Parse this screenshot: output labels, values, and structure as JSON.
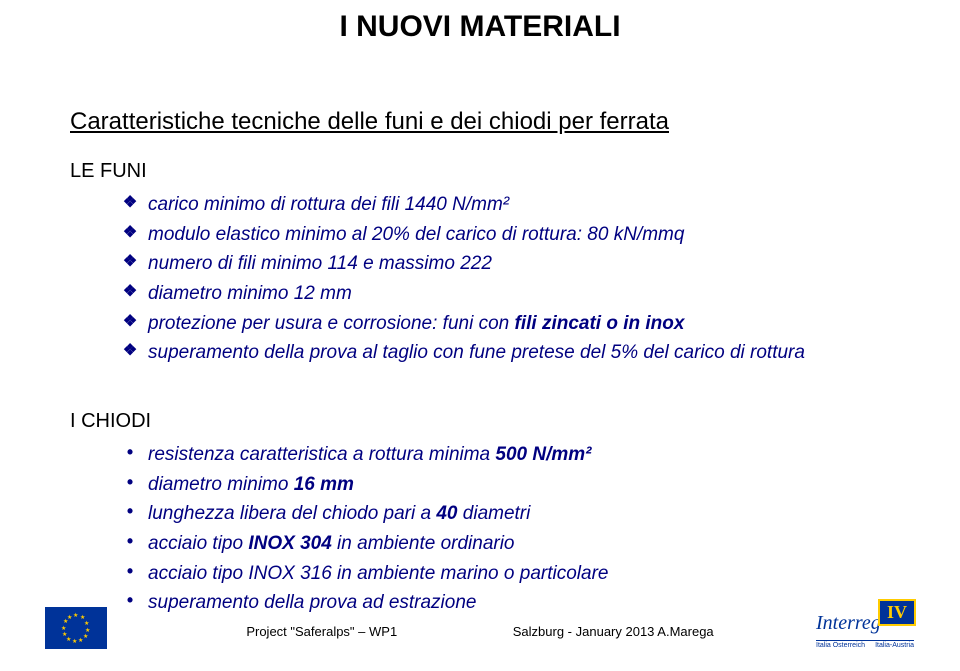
{
  "title": "I NUOVI MATERIALI",
  "subtitle": "Caratteristiche tecniche delle funi e dei chiodi per ferrata",
  "sections": {
    "lefuni": {
      "label": "LE FUNI",
      "items": [
        "carico minimo di rottura dei fili 1440 N/mm²",
        "modulo elastico minimo al 20% del carico di rottura: 80 kN/mmq",
        "numero di fili minimo 114 e massimo 222",
        "diametro minimo 12 mm",
        "protezione per usura e corrosione: funi con <b>fili zincati o in inox</b>",
        "superamento della prova al taglio con fune pretese del 5% del carico di rottura"
      ]
    },
    "ichiodi": {
      "label": "I CHIODI",
      "items": [
        "resistenza caratteristica a rottura minima <b>500 N/mm²</b>",
        "diametro minimo <b>16 mm</b>",
        "lunghezza libera del chiodo pari a <b>40</b> diametri",
        "acciaio tipo <b>INOX 304</b> in ambiente ordinario",
        "acciaio tipo INOX 316 in ambiente marino o particolare",
        "superamento della prova ad estrazione"
      ]
    }
  },
  "colors": {
    "bullet_text": "#000080",
    "title_text": "#000000",
    "eu_blue": "#003399",
    "eu_yellow": "#ffcc00",
    "background": "#ffffff"
  },
  "fonts": {
    "title_size": 30,
    "subtitle_size": 24,
    "section_label_size": 20,
    "item_size": 19,
    "footer_size": 13
  },
  "footer": {
    "project_left": "Project \"Saferalps\" – WP1",
    "project_right": "Salzburg  -  January 2013 A.Marega",
    "interreg_main": "Interreg",
    "interreg_roman": "IV",
    "interreg_sub_left": "Italia     Österreich",
    "interreg_sub_right": "Italia-Austria"
  }
}
